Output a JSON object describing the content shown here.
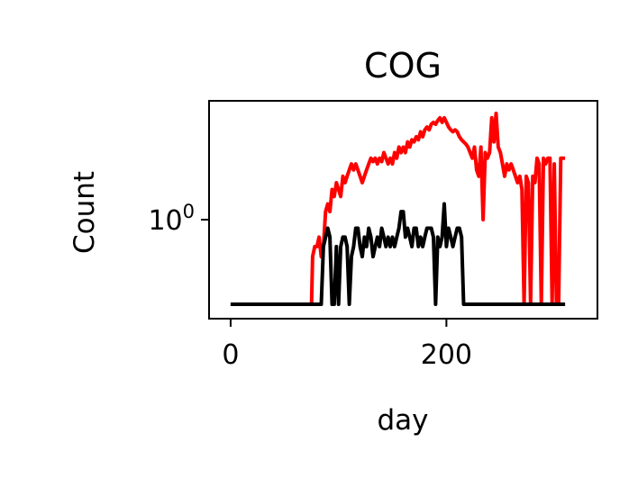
{
  "chart_data": {
    "type": "line",
    "title": "COG",
    "xlabel": "day",
    "ylabel": "Count",
    "yscale": "log",
    "xlim": [
      -20,
      340
    ],
    "ylim": [
      0.55,
      2.05
    ],
    "x_ticks": [
      {
        "value": 0,
        "label": "0"
      },
      {
        "value": 200,
        "label": "200"
      }
    ],
    "y_ticks": [
      {
        "value": 1,
        "base": "10",
        "exp": "0"
      }
    ],
    "grid": false,
    "legend": "none",
    "series": [
      {
        "color": "#ff0000",
        "points": [
          [
            0,
            0.6
          ],
          [
            75,
            0.6
          ],
          [
            76,
            0.8
          ],
          [
            78,
            0.85
          ],
          [
            80,
            0.85
          ],
          [
            82,
            0.9
          ],
          [
            84,
            0.8
          ],
          [
            86,
            0.85
          ],
          [
            88,
            1.05
          ],
          [
            90,
            1.1
          ],
          [
            92,
            1.05
          ],
          [
            94,
            1.2
          ],
          [
            96,
            1.15
          ],
          [
            98,
            1.25
          ],
          [
            100,
            1.2
          ],
          [
            102,
            1.15
          ],
          [
            104,
            1.3
          ],
          [
            106,
            1.25
          ],
          [
            108,
            1.3
          ],
          [
            110,
            1.35
          ],
          [
            112,
            1.4
          ],
          [
            114,
            1.35
          ],
          [
            116,
            1.4
          ],
          [
            118,
            1.35
          ],
          [
            120,
            1.3
          ],
          [
            122,
            1.25
          ],
          [
            124,
            1.3
          ],
          [
            126,
            1.35
          ],
          [
            128,
            1.4
          ],
          [
            130,
            1.45
          ],
          [
            132,
            1.42
          ],
          [
            134,
            1.45
          ],
          [
            136,
            1.4
          ],
          [
            138,
            1.45
          ],
          [
            140,
            1.42
          ],
          [
            142,
            1.5
          ],
          [
            144,
            1.45
          ],
          [
            146,
            1.4
          ],
          [
            148,
            1.45
          ],
          [
            150,
            1.4
          ],
          [
            152,
            1.5
          ],
          [
            154,
            1.45
          ],
          [
            156,
            1.55
          ],
          [
            158,
            1.5
          ],
          [
            160,
            1.55
          ],
          [
            162,
            1.5
          ],
          [
            164,
            1.6
          ],
          [
            166,
            1.55
          ],
          [
            168,
            1.62
          ],
          [
            170,
            1.6
          ],
          [
            172,
            1.65
          ],
          [
            174,
            1.62
          ],
          [
            176,
            1.7
          ],
          [
            178,
            1.65
          ],
          [
            180,
            1.72
          ],
          [
            182,
            1.75
          ],
          [
            184,
            1.72
          ],
          [
            186,
            1.78
          ],
          [
            188,
            1.8
          ],
          [
            190,
            1.78
          ],
          [
            192,
            1.82
          ],
          [
            194,
            1.85
          ],
          [
            196,
            1.8
          ],
          [
            198,
            1.85
          ],
          [
            200,
            1.8
          ],
          [
            202,
            1.75
          ],
          [
            204,
            1.72
          ],
          [
            206,
            1.7
          ],
          [
            208,
            1.72
          ],
          [
            210,
            1.7
          ],
          [
            212,
            1.65
          ],
          [
            214,
            1.62
          ],
          [
            216,
            1.6
          ],
          [
            218,
            1.58
          ],
          [
            220,
            1.55
          ],
          [
            222,
            1.5
          ],
          [
            224,
            1.45
          ],
          [
            226,
            1.55
          ],
          [
            228,
            1.35
          ],
          [
            230,
            1.3
          ],
          [
            232,
            1.55
          ],
          [
            234,
            1.0
          ],
          [
            236,
            1.5
          ],
          [
            238,
            1.45
          ],
          [
            240,
            1.5
          ],
          [
            242,
            1.85
          ],
          [
            244,
            1.6
          ],
          [
            246,
            1.9
          ],
          [
            248,
            1.55
          ],
          [
            250,
            1.5
          ],
          [
            252,
            1.4
          ],
          [
            254,
            1.3
          ],
          [
            256,
            1.4
          ],
          [
            258,
            1.35
          ],
          [
            260,
            1.4
          ],
          [
            262,
            1.35
          ],
          [
            264,
            1.3
          ],
          [
            266,
            1.25
          ],
          [
            268,
            1.3
          ],
          [
            270,
            1.2
          ],
          [
            272,
            0.6
          ],
          [
            274,
            1.3
          ],
          [
            276,
            1.25
          ],
          [
            278,
            0.6
          ],
          [
            280,
            1.3
          ],
          [
            282,
            1.25
          ],
          [
            284,
            1.45
          ],
          [
            286,
            1.4
          ],
          [
            288,
            0.6
          ],
          [
            290,
            1.45
          ],
          [
            292,
            1.4
          ],
          [
            294,
            1.45
          ],
          [
            296,
            1.45
          ],
          [
            298,
            0.6
          ],
          [
            300,
            1.4
          ],
          [
            302,
            0.6
          ],
          [
            304,
            0.6
          ],
          [
            306,
            1.45
          ],
          [
            308,
            1.45
          ],
          [
            310,
            1.45
          ]
        ]
      },
      {
        "color": "#000000",
        "points": [
          [
            0,
            0.6
          ],
          [
            84,
            0.6
          ],
          [
            86,
            0.85
          ],
          [
            88,
            0.9
          ],
          [
            90,
            0.95
          ],
          [
            92,
            0.9
          ],
          [
            94,
            0.6
          ],
          [
            96,
            0.6
          ],
          [
            98,
            0.85
          ],
          [
            100,
            0.6
          ],
          [
            102,
            0.85
          ],
          [
            104,
            0.9
          ],
          [
            106,
            0.9
          ],
          [
            108,
            0.85
          ],
          [
            110,
            0.6
          ],
          [
            112,
            0.8
          ],
          [
            114,
            0.85
          ],
          [
            116,
            0.95
          ],
          [
            118,
            0.95
          ],
          [
            120,
            0.85
          ],
          [
            122,
            0.8
          ],
          [
            124,
            0.9
          ],
          [
            126,
            0.85
          ],
          [
            128,
            0.95
          ],
          [
            130,
            0.9
          ],
          [
            132,
            0.8
          ],
          [
            134,
            0.85
          ],
          [
            136,
            0.9
          ],
          [
            138,
            0.85
          ],
          [
            140,
            0.95
          ],
          [
            142,
            0.9
          ],
          [
            144,
            0.85
          ],
          [
            146,
            0.9
          ],
          [
            148,
            0.85
          ],
          [
            150,
            0.9
          ],
          [
            152,
            0.85
          ],
          [
            154,
            0.9
          ],
          [
            156,
            0.95
          ],
          [
            158,
            1.05
          ],
          [
            160,
            1.05
          ],
          [
            162,
            0.9
          ],
          [
            164,
            0.95
          ],
          [
            166,
            0.9
          ],
          [
            168,
            0.85
          ],
          [
            170,
            0.95
          ],
          [
            172,
            0.95
          ],
          [
            174,
            0.85
          ],
          [
            176,
            0.9
          ],
          [
            178,
            0.85
          ],
          [
            180,
            0.9
          ],
          [
            182,
            0.95
          ],
          [
            184,
            0.95
          ],
          [
            186,
            0.95
          ],
          [
            188,
            0.9
          ],
          [
            190,
            0.6
          ],
          [
            192,
            0.9
          ],
          [
            194,
            0.85
          ],
          [
            196,
            0.9
          ],
          [
            198,
            1.1
          ],
          [
            200,
            0.85
          ],
          [
            202,
            0.95
          ],
          [
            204,
            0.9
          ],
          [
            206,
            0.85
          ],
          [
            208,
            0.9
          ],
          [
            210,
            0.95
          ],
          [
            212,
            0.95
          ],
          [
            214,
            0.9
          ],
          [
            216,
            0.6
          ],
          [
            218,
            0.6
          ],
          [
            220,
            0.6
          ],
          [
            222,
            0.6
          ],
          [
            224,
            0.6
          ],
          [
            226,
            0.6
          ],
          [
            228,
            0.6
          ],
          [
            230,
            0.6
          ],
          [
            232,
            0.6
          ],
          [
            234,
            0.6
          ],
          [
            236,
            0.6
          ],
          [
            238,
            0.6
          ],
          [
            240,
            0.6
          ],
          [
            242,
            0.6
          ],
          [
            244,
            0.6
          ],
          [
            246,
            0.6
          ],
          [
            248,
            0.6
          ],
          [
            250,
            0.6
          ],
          [
            252,
            0.6
          ],
          [
            254,
            0.6
          ],
          [
            256,
            0.6
          ],
          [
            258,
            0.6
          ],
          [
            260,
            0.6
          ],
          [
            262,
            0.6
          ],
          [
            264,
            0.6
          ],
          [
            266,
            0.6
          ],
          [
            268,
            0.6
          ],
          [
            270,
            0.6
          ],
          [
            272,
            0.6
          ],
          [
            274,
            0.6
          ],
          [
            276,
            0.6
          ],
          [
            278,
            0.6
          ],
          [
            280,
            0.6
          ],
          [
            282,
            0.6
          ],
          [
            284,
            0.6
          ],
          [
            286,
            0.6
          ],
          [
            288,
            0.6
          ],
          [
            290,
            0.6
          ],
          [
            292,
            0.6
          ],
          [
            294,
            0.6
          ],
          [
            296,
            0.6
          ],
          [
            298,
            0.6
          ],
          [
            300,
            0.6
          ],
          [
            302,
            0.6
          ],
          [
            304,
            0.6
          ],
          [
            306,
            0.6
          ],
          [
            308,
            0.6
          ],
          [
            310,
            0.6
          ]
        ]
      }
    ]
  }
}
